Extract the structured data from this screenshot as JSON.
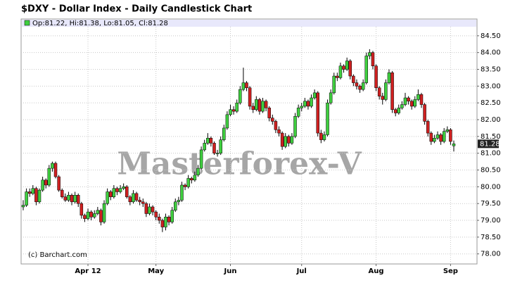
{
  "chart_data": {
    "type": "candlestick",
    "title": "$DXY - Dollar Index - Daily Candlestick Chart",
    "legend": "Op:81.22, Hi:81.38, Lo:81.05, Cl:81.28",
    "watermark": "Masterforex-V",
    "credit": "(c) Barchart.com",
    "last_price": 81.28,
    "up_color": "#3fcf3f",
    "down_color": "#cf2020",
    "grid": true,
    "ylim": [
      77.7,
      85.0
    ],
    "yticks": [
      {
        "value": 78,
        "label": "78.00"
      },
      {
        "value": 78.5,
        "label": "78.50"
      },
      {
        "value": 79,
        "label": "79.00"
      },
      {
        "value": 79.5,
        "label": "79.50"
      },
      {
        "value": 80,
        "label": "80.00"
      },
      {
        "value": 80.5,
        "label": "80.50"
      },
      {
        "value": 81,
        "label": "81.00"
      },
      {
        "value": 81.5,
        "label": "81.50"
      },
      {
        "value": 82,
        "label": "82.00"
      },
      {
        "value": 82.5,
        "label": "82.50"
      },
      {
        "value": 83,
        "label": "83.00"
      },
      {
        "value": 83.5,
        "label": "83.50"
      },
      {
        "value": 84,
        "label": "84.00"
      },
      {
        "value": 84.5,
        "label": "84.50"
      }
    ],
    "categories": [
      null,
      null,
      null,
      null,
      null,
      null,
      null,
      null,
      null,
      null,
      null,
      null,
      null,
      null,
      null,
      null,
      null,
      null,
      null,
      null,
      "Apr 12",
      null,
      null,
      null,
      null,
      null,
      null,
      null,
      null,
      null,
      null,
      null,
      null,
      null,
      null,
      null,
      null,
      null,
      null,
      null,
      null,
      "May",
      null,
      null,
      null,
      null,
      null,
      null,
      null,
      null,
      null,
      null,
      null,
      null,
      null,
      null,
      null,
      null,
      null,
      null,
      null,
      null,
      null,
      null,
      "Jun",
      null,
      null,
      null,
      null,
      null,
      null,
      null,
      null,
      null,
      null,
      null,
      null,
      null,
      null,
      null,
      null,
      null,
      null,
      null,
      null,
      null,
      "Jul",
      null,
      null,
      null,
      null,
      null,
      null,
      null,
      null,
      null,
      null,
      null,
      null,
      null,
      null,
      null,
      null,
      null,
      null,
      null,
      null,
      null,
      null,
      "Aug",
      null,
      null,
      null,
      null,
      null,
      null,
      null,
      null,
      null,
      null,
      null,
      null,
      null,
      null,
      null,
      null,
      null,
      null,
      null,
      null,
      null,
      null,
      "Sep",
      null
    ],
    "values": [
      [
        79.4,
        79.6,
        79.3,
        79.45
      ],
      [
        79.45,
        79.95,
        79.4,
        79.85
      ],
      [
        79.85,
        79.95,
        79.7,
        79.8
      ],
      [
        79.8,
        80.05,
        79.75,
        79.95
      ],
      [
        79.95,
        80.0,
        79.45,
        79.55
      ],
      [
        79.55,
        79.95,
        79.5,
        79.9
      ],
      [
        79.9,
        80.3,
        79.85,
        80.2
      ],
      [
        80.2,
        80.25,
        79.95,
        80.05
      ],
      [
        80.05,
        80.65,
        80.0,
        80.55
      ],
      [
        80.55,
        80.75,
        80.45,
        80.7
      ],
      [
        80.7,
        80.75,
        80.25,
        80.3
      ],
      [
        80.3,
        80.35,
        79.85,
        79.9
      ],
      [
        79.9,
        79.95,
        79.65,
        79.7
      ],
      [
        79.7,
        79.8,
        79.55,
        79.6
      ],
      [
        79.6,
        79.85,
        79.55,
        79.75
      ],
      [
        79.75,
        79.8,
        79.45,
        79.55
      ],
      [
        79.55,
        79.85,
        79.5,
        79.75
      ],
      [
        79.75,
        79.8,
        79.4,
        79.5
      ],
      [
        79.5,
        79.55,
        79.05,
        79.15
      ],
      [
        79.15,
        79.2,
        78.95,
        79.05
      ],
      [
        79.05,
        79.35,
        79.0,
        79.25
      ],
      [
        79.25,
        79.3,
        79.0,
        79.1
      ],
      [
        79.1,
        79.3,
        79.05,
        79.2
      ],
      [
        79.2,
        79.4,
        79.15,
        79.3
      ],
      [
        79.3,
        79.35,
        78.85,
        78.95
      ],
      [
        78.95,
        79.6,
        78.9,
        79.5
      ],
      [
        79.5,
        79.95,
        79.45,
        79.85
      ],
      [
        79.85,
        79.9,
        79.6,
        79.7
      ],
      [
        79.7,
        80.05,
        79.65,
        79.95
      ],
      [
        79.95,
        80.0,
        79.75,
        79.85
      ],
      [
        79.85,
        80.05,
        79.8,
        79.95
      ],
      [
        79.95,
        80.1,
        79.9,
        80.0
      ],
      [
        80.0,
        80.05,
        79.65,
        79.7
      ],
      [
        79.7,
        79.75,
        79.45,
        79.55
      ],
      [
        79.55,
        79.9,
        79.5,
        79.8
      ],
      [
        79.8,
        79.85,
        79.55,
        79.6
      ],
      [
        79.6,
        79.7,
        79.45,
        79.55
      ],
      [
        79.55,
        79.65,
        79.4,
        79.5
      ],
      [
        79.5,
        79.55,
        79.1,
        79.2
      ],
      [
        79.2,
        79.5,
        79.15,
        79.4
      ],
      [
        79.4,
        79.45,
        79.15,
        79.25
      ],
      [
        79.25,
        79.3,
        79.0,
        79.1
      ],
      [
        79.1,
        79.2,
        78.9,
        79.0
      ],
      [
        79.0,
        79.05,
        78.65,
        78.8
      ],
      [
        78.8,
        79.2,
        78.7,
        79.1
      ],
      [
        79.1,
        79.15,
        78.85,
        78.95
      ],
      [
        78.95,
        79.4,
        78.9,
        79.3
      ],
      [
        79.3,
        79.65,
        79.25,
        79.55
      ],
      [
        79.55,
        79.7,
        79.45,
        79.6
      ],
      [
        79.6,
        80.15,
        79.55,
        80.05
      ],
      [
        80.05,
        80.1,
        79.9,
        80.0
      ],
      [
        80.0,
        80.35,
        79.95,
        80.25
      ],
      [
        80.25,
        80.3,
        80.1,
        80.2
      ],
      [
        80.2,
        80.45,
        80.15,
        80.35
      ],
      [
        80.35,
        80.65,
        80.3,
        80.55
      ],
      [
        80.55,
        81.2,
        80.5,
        81.1
      ],
      [
        81.1,
        81.4,
        81.05,
        81.3
      ],
      [
        81.3,
        81.6,
        81.25,
        81.45
      ],
      [
        81.45,
        81.5,
        81.2,
        81.3
      ],
      [
        81.3,
        81.35,
        80.95,
        81.0
      ],
      [
        81.0,
        81.1,
        80.9,
        81.0
      ],
      [
        81.0,
        81.5,
        80.95,
        81.4
      ],
      [
        81.4,
        81.85,
        81.35,
        81.75
      ],
      [
        81.75,
        82.25,
        81.7,
        82.15
      ],
      [
        82.15,
        82.45,
        82.1,
        82.3
      ],
      [
        82.3,
        82.4,
        82.15,
        82.25
      ],
      [
        82.25,
        82.6,
        82.2,
        82.5
      ],
      [
        82.5,
        83.0,
        82.45,
        82.9
      ],
      [
        82.9,
        83.55,
        82.85,
        83.1
      ],
      [
        83.1,
        83.15,
        82.85,
        82.95
      ],
      [
        82.95,
        83.0,
        82.3,
        82.4
      ],
      [
        82.4,
        82.5,
        82.2,
        82.3
      ],
      [
        82.3,
        82.7,
        82.25,
        82.6
      ],
      [
        82.6,
        82.65,
        82.15,
        82.25
      ],
      [
        82.25,
        82.65,
        82.2,
        82.55
      ],
      [
        82.55,
        82.6,
        82.25,
        82.35
      ],
      [
        82.35,
        82.4,
        81.95,
        82.05
      ],
      [
        82.05,
        82.15,
        81.85,
        81.95
      ],
      [
        81.95,
        82.0,
        81.6,
        81.7
      ],
      [
        81.7,
        81.8,
        81.5,
        81.6
      ],
      [
        81.6,
        81.65,
        81.1,
        81.2
      ],
      [
        81.2,
        81.6,
        81.15,
        81.5
      ],
      [
        81.5,
        81.55,
        81.2,
        81.3
      ],
      [
        81.3,
        81.6,
        81.25,
        81.5
      ],
      [
        81.5,
        82.2,
        81.45,
        82.1
      ],
      [
        82.1,
        82.45,
        82.05,
        82.35
      ],
      [
        82.35,
        82.5,
        82.25,
        82.4
      ],
      [
        82.4,
        82.65,
        82.35,
        82.55
      ],
      [
        82.55,
        82.6,
        82.3,
        82.4
      ],
      [
        82.4,
        82.75,
        82.35,
        82.65
      ],
      [
        82.65,
        82.9,
        82.6,
        82.8
      ],
      [
        82.8,
        82.85,
        81.5,
        81.6
      ],
      [
        81.6,
        81.7,
        81.3,
        81.4
      ],
      [
        81.4,
        81.65,
        81.35,
        81.55
      ],
      [
        81.55,
        82.6,
        81.5,
        82.5
      ],
      [
        82.5,
        82.9,
        82.45,
        82.8
      ],
      [
        82.8,
        83.4,
        82.75,
        83.3
      ],
      [
        83.3,
        83.4,
        83.15,
        83.25
      ],
      [
        83.25,
        83.7,
        83.2,
        83.6
      ],
      [
        83.6,
        83.65,
        83.4,
        83.5
      ],
      [
        83.5,
        83.85,
        83.45,
        83.75
      ],
      [
        83.75,
        83.8,
        83.2,
        83.3
      ],
      [
        83.3,
        83.35,
        83.0,
        83.1
      ],
      [
        83.1,
        83.2,
        82.9,
        83.0
      ],
      [
        83.0,
        83.05,
        82.8,
        82.9
      ],
      [
        82.9,
        83.2,
        82.85,
        83.1
      ],
      [
        83.1,
        84.0,
        83.05,
        83.9
      ],
      [
        83.9,
        84.1,
        83.8,
        84.0
      ],
      [
        84.0,
        84.05,
        83.5,
        83.6
      ],
      [
        83.6,
        83.65,
        82.85,
        82.95
      ],
      [
        82.95,
        83.0,
        82.6,
        82.7
      ],
      [
        82.7,
        82.8,
        82.45,
        82.6
      ],
      [
        82.6,
        83.2,
        82.55,
        83.1
      ],
      [
        83.1,
        83.5,
        83.05,
        83.4
      ],
      [
        83.4,
        83.45,
        82.2,
        82.3
      ],
      [
        82.3,
        82.35,
        82.1,
        82.2
      ],
      [
        82.2,
        82.45,
        82.15,
        82.35
      ],
      [
        82.35,
        82.55,
        82.3,
        82.45
      ],
      [
        82.45,
        82.8,
        82.4,
        82.65
      ],
      [
        82.65,
        82.7,
        82.45,
        82.55
      ],
      [
        82.55,
        82.6,
        82.3,
        82.4
      ],
      [
        82.4,
        82.7,
        82.35,
        82.6
      ],
      [
        82.6,
        82.9,
        82.55,
        82.75
      ],
      [
        82.75,
        82.8,
        82.35,
        82.45
      ],
      [
        82.45,
        82.5,
        81.85,
        81.95
      ],
      [
        81.95,
        82.0,
        81.5,
        81.6
      ],
      [
        81.6,
        81.65,
        81.25,
        81.35
      ],
      [
        81.35,
        81.55,
        81.3,
        81.45
      ],
      [
        81.45,
        81.65,
        81.4,
        81.55
      ],
      [
        81.55,
        81.6,
        81.25,
        81.35
      ],
      [
        81.35,
        81.75,
        81.3,
        81.65
      ],
      [
        81.65,
        81.8,
        81.6,
        81.7
      ],
      [
        81.7,
        81.75,
        81.25,
        81.35
      ],
      [
        81.22,
        81.38,
        81.05,
        81.28
      ]
    ]
  }
}
